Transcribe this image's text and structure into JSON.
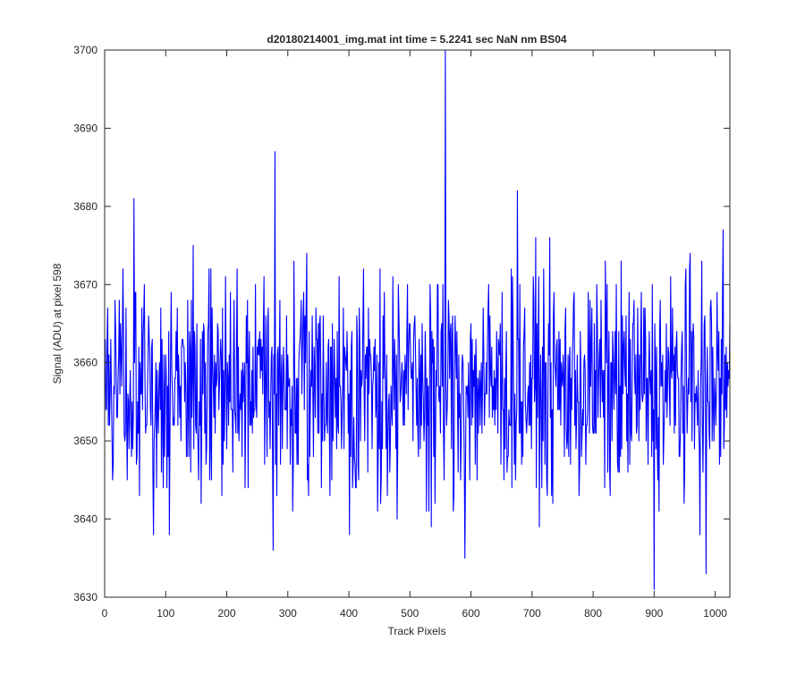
{
  "chart_data": {
    "type": "line",
    "title": "d20180214001_img.mat int time = 5.2241 sec  NaN nm BS04",
    "xlabel": "Track Pixels",
    "ylabel": "Signal (ADU) at pixel 598",
    "xlim": [
      0,
      1024
    ],
    "ylim": [
      3630,
      3700
    ],
    "xticks": [
      0,
      100,
      200,
      300,
      400,
      500,
      600,
      700,
      800,
      900,
      1000
    ],
    "yticks": [
      3630,
      3640,
      3650,
      3660,
      3670,
      3680,
      3690,
      3700
    ],
    "grid": false,
    "line_color": "#0000ff",
    "series": [
      {
        "x_start": 1,
        "x_step": 1,
        "noise_mean": 3657,
        "noise_range": [
          3631,
          3700
        ],
        "notable_points": [
          {
            "x": 48,
            "y": 3681
          },
          {
            "x": 80,
            "y": 3638
          },
          {
            "x": 276,
            "y": 3636
          },
          {
            "x": 279,
            "y": 3687
          },
          {
            "x": 558,
            "y": 3700
          },
          {
            "x": 590,
            "y": 3635
          },
          {
            "x": 676,
            "y": 3682
          },
          {
            "x": 900,
            "y": 3631
          },
          {
            "x": 985,
            "y": 3633
          },
          {
            "x": 1013,
            "y": 3677
          }
        ]
      }
    ]
  }
}
